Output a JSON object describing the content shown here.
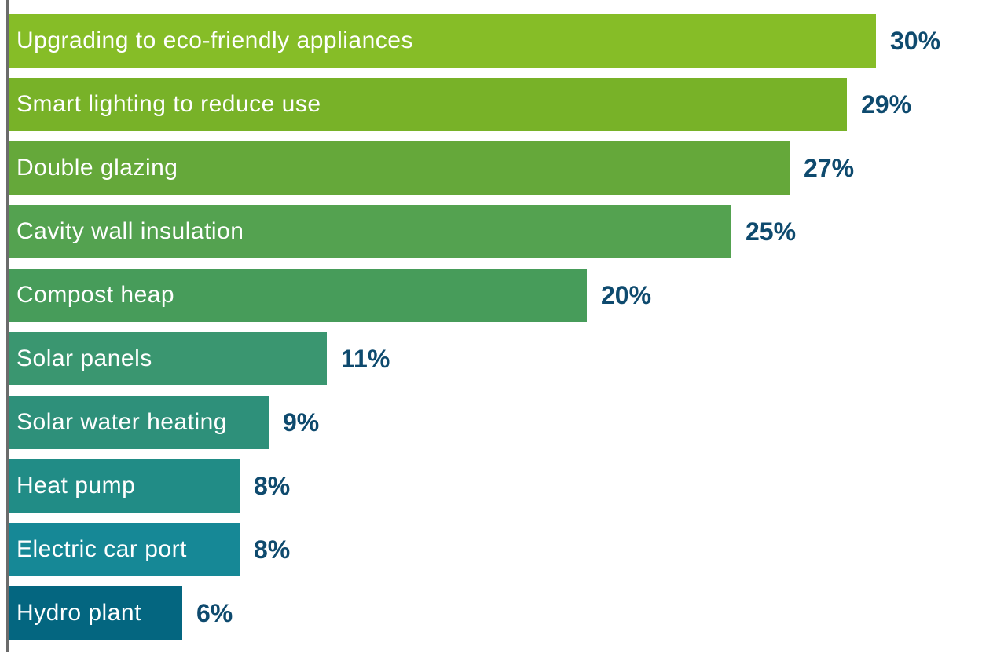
{
  "chart_data": {
    "type": "bar",
    "orientation": "horizontal",
    "title": "",
    "xlabel": "",
    "ylabel": "",
    "categories": [
      "Upgrading to eco-friendly appliances",
      "Smart lighting to reduce use",
      "Double glazing",
      "Cavity wall insulation",
      "Compost heap",
      "Solar panels",
      "Solar water heating",
      "Heat pump",
      "Electric car port",
      "Hydro plant"
    ],
    "values": [
      30,
      29,
      27,
      25,
      20,
      11,
      9,
      8,
      8,
      6
    ],
    "value_labels": [
      "30%",
      "29%",
      "27%",
      "25%",
      "20%",
      "11%",
      "9%",
      "8%",
      "8%",
      "6%"
    ],
    "bar_colors": [
      "#86bd27",
      "#78b228",
      "#65a83a",
      "#54a250",
      "#479c5a",
      "#3a9670",
      "#2e907a",
      "#218c86",
      "#168896",
      "#046680"
    ],
    "value_color": "#0e4a6e",
    "grid": false,
    "legend": "none",
    "unit": "%"
  }
}
